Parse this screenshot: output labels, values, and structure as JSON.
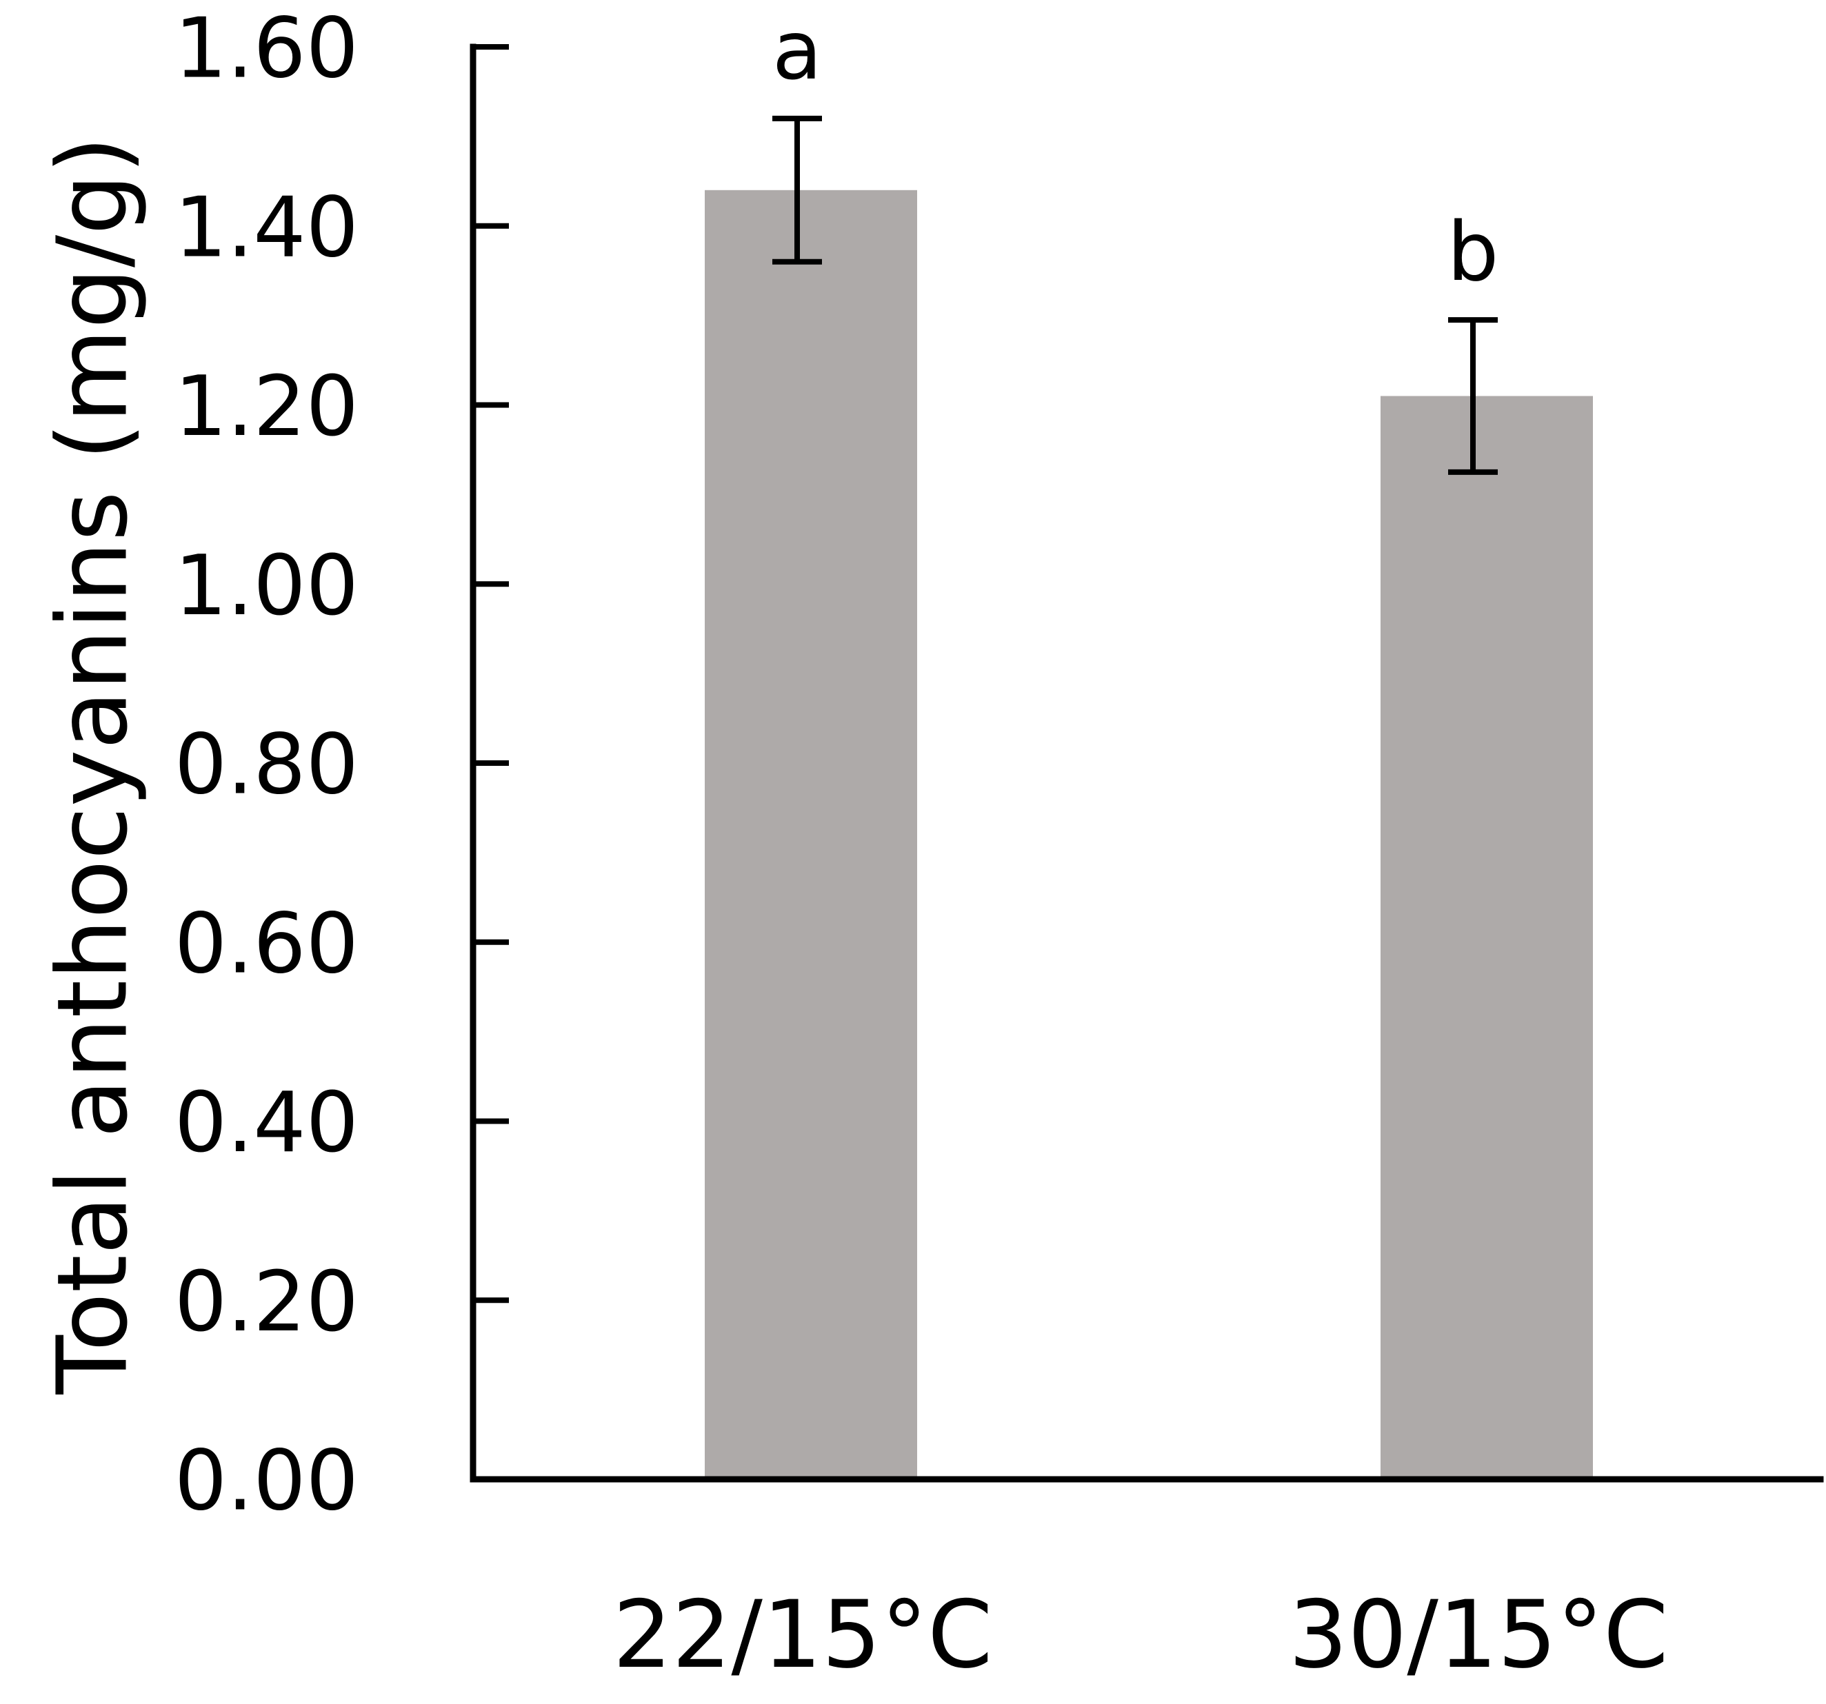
{
  "chart_data": {
    "type": "bar",
    "title": "",
    "xlabel": "",
    "ylabel": "Total anthocyanins (mg/g)",
    "categories": [
      "22/15°C",
      "30/15°C"
    ],
    "values": [
      1.44,
      1.21
    ],
    "error": [
      0.08,
      0.085
    ],
    "significance": [
      "a",
      "b"
    ],
    "ylim": [
      0,
      1.6
    ],
    "yticks": [
      0.0,
      0.2,
      0.4,
      0.6,
      0.8,
      1.0,
      1.2,
      1.4,
      1.6
    ],
    "ytick_labels": [
      "0.00",
      "0.20",
      "0.40",
      "0.60",
      "0.80",
      "1.00",
      "1.20",
      "1.40",
      "1.60"
    ],
    "grid": false,
    "legend": "none",
    "colors": {
      "bar": "#aeaaa9",
      "axis": "#000000",
      "errorbar": "#000000"
    }
  }
}
